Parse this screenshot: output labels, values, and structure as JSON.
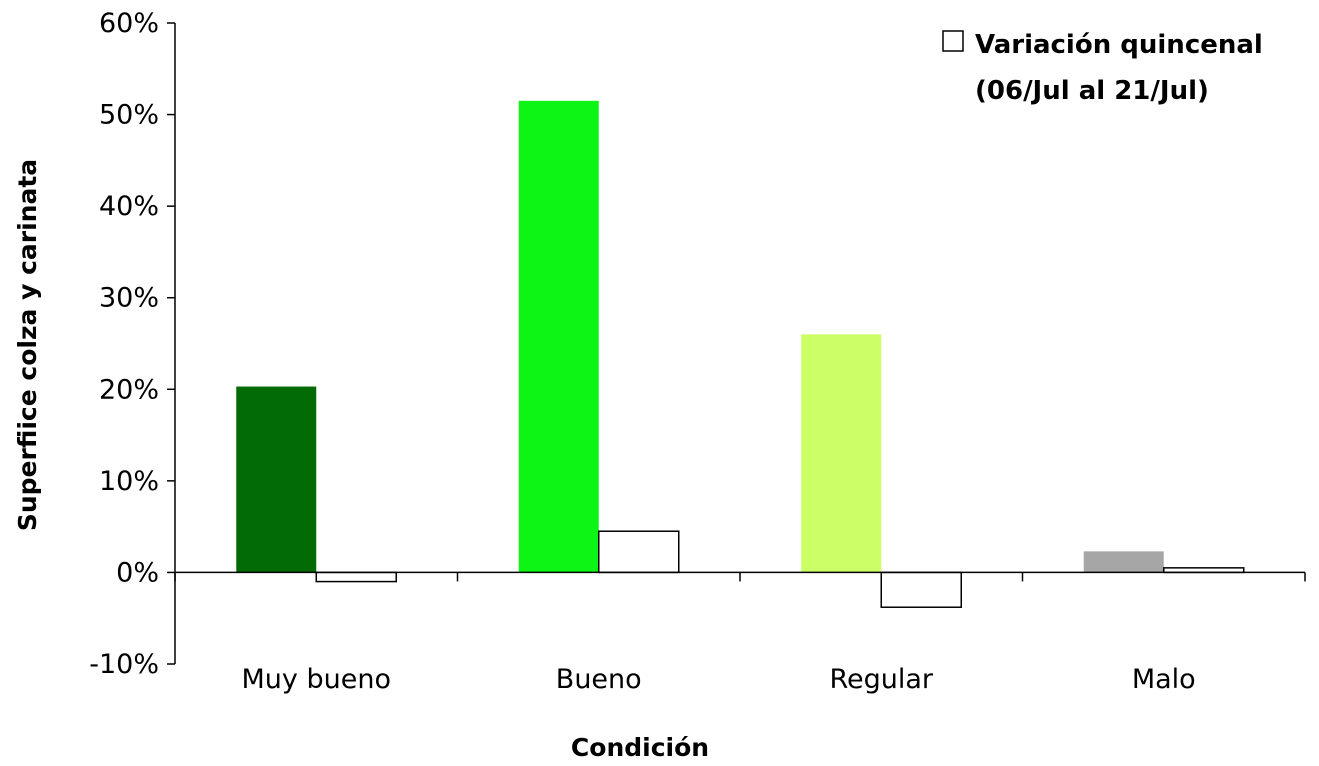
{
  "chart_data": {
    "type": "bar",
    "title": "",
    "xlabel": "Condición",
    "ylabel": "Superfiice colza y carinata",
    "categories": [
      "Muy bueno",
      "Bueno",
      "Regular",
      "Malo"
    ],
    "values": [
      20.3,
      51.5,
      26.0,
      2.3
    ],
    "bar_colors": [
      "#036b06",
      "#0df514",
      "#ccff66",
      "#a6a6a6"
    ],
    "series": [
      {
        "name": "Variación quincenal (06/Jul al 21/Jul)",
        "values": [
          -1.0,
          4.5,
          -3.8,
          0.5
        ],
        "color": "#ffffff",
        "stroke": "#000000"
      }
    ],
    "ylim": [
      -10,
      60
    ],
    "yticks": [
      -10,
      0,
      10,
      20,
      30,
      40,
      50,
      60
    ],
    "ytick_format": "percent",
    "grid": false,
    "legend": {
      "placement": "top-right",
      "lines": [
        "Variación quincenal",
        "(06/Jul al 21/Jul)"
      ]
    }
  }
}
